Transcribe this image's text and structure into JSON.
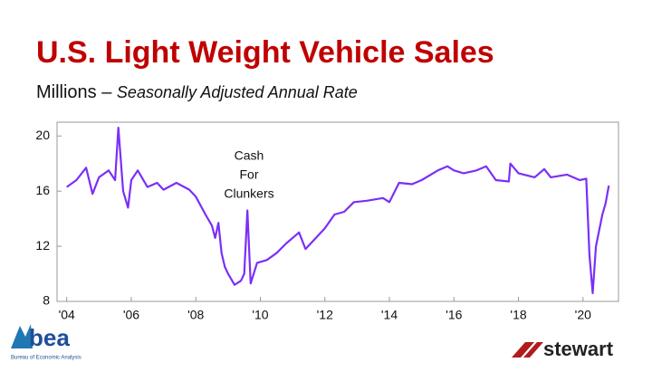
{
  "chart_data": {
    "type": "line",
    "title": "U.S. Light Weight Vehicle Sales",
    "subtitle": "Millions –",
    "subtitle_italic": "Seasonally Adjusted Annual Rate",
    "annotation": [
      "Cash",
      "For",
      "Clunkers"
    ],
    "x": [
      2004.0,
      2004.3,
      2004.6,
      2004.8,
      2005.0,
      2005.3,
      2005.5,
      2005.6,
      2005.75,
      2005.9,
      2006.0,
      2006.2,
      2006.5,
      2006.8,
      2007.0,
      2007.4,
      2007.8,
      2008.0,
      2008.3,
      2008.5,
      2008.6,
      2008.7,
      2008.8,
      2008.9,
      2009.0,
      2009.2,
      2009.4,
      2009.5,
      2009.6,
      2009.7,
      2009.9,
      2010.2,
      2010.5,
      2010.8,
      2011.0,
      2011.2,
      2011.4,
      2011.6,
      2012.0,
      2012.3,
      2012.6,
      2012.9,
      2013.3,
      2013.8,
      2014.0,
      2014.3,
      2014.7,
      2015.0,
      2015.5,
      2015.8,
      2016.0,
      2016.3,
      2016.7,
      2017.0,
      2017.3,
      2017.7,
      2017.75,
      2018.0,
      2018.5,
      2018.8,
      2019.0,
      2019.5,
      2019.9,
      2020.1,
      2020.2,
      2020.3,
      2020.4,
      2020.6,
      2020.7,
      2020.8
    ],
    "series": [
      {
        "name": "Light weight vehicle sales",
        "color": "#7b2ff7",
        "values": [
          16.3,
          16.8,
          17.7,
          15.8,
          17.0,
          17.5,
          16.8,
          20.6,
          16.0,
          14.8,
          16.8,
          17.5,
          16.3,
          16.6,
          16.1,
          16.6,
          16.1,
          15.6,
          14.3,
          13.5,
          12.6,
          13.7,
          11.5,
          10.5,
          10.0,
          9.2,
          9.5,
          10.0,
          14.6,
          9.3,
          10.8,
          11.0,
          11.5,
          12.2,
          12.6,
          13.0,
          11.8,
          12.3,
          13.3,
          14.3,
          14.5,
          15.2,
          15.3,
          15.5,
          15.2,
          16.6,
          16.5,
          16.8,
          17.5,
          17.8,
          17.5,
          17.3,
          17.5,
          17.8,
          16.8,
          16.7,
          18.0,
          17.3,
          17.0,
          17.6,
          17.0,
          17.2,
          16.8,
          16.9,
          11.4,
          8.6,
          12.0,
          14.3,
          15.1,
          16.4
        ]
      }
    ],
    "xlim": [
      2003.7,
      2021.1
    ],
    "xticks": [
      {
        "value": 2004,
        "label": "'04"
      },
      {
        "value": 2006,
        "label": "'06"
      },
      {
        "value": 2008,
        "label": "'08"
      },
      {
        "value": 2010,
        "label": "'10"
      },
      {
        "value": 2012,
        "label": "'12"
      },
      {
        "value": 2014,
        "label": "'14"
      },
      {
        "value": 2016,
        "label": "'16"
      },
      {
        "value": 2018,
        "label": "'18"
      },
      {
        "value": 2020,
        "label": "'20"
      }
    ],
    "ylim": [
      8,
      21
    ],
    "yticks": [
      8,
      12,
      16,
      20
    ]
  },
  "logos": {
    "left": "bea",
    "left_sub": "Bureau of Economic Analysis",
    "right": "stewart"
  }
}
